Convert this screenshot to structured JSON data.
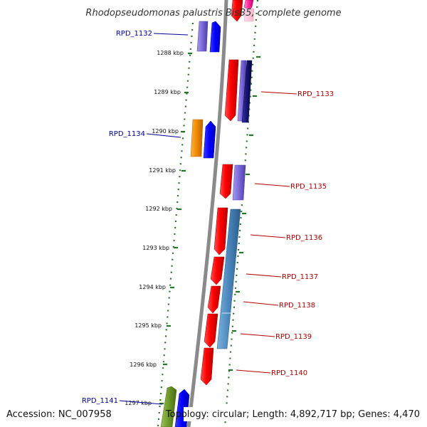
{
  "title": "Rhodopseudomonas palustris BisB5, complete genome",
  "footer": {
    "accession": "Accession: NC_007958",
    "topology": "Topology: circular; Length: 4,892,717 bp; Genes: 4,470"
  },
  "colors": {
    "forward_label": "#00009b",
    "reverse_label": "#b40000",
    "tick_green": "#227722",
    "backbone": "#8a8a8a"
  },
  "kbp_ticks": [
    "1288 kbp",
    "1289 kbp",
    "1290 kbp",
    "1291 kbp",
    "1292 kbp",
    "1293 kbp",
    "1294 kbp",
    "1295 kbp",
    "1296 kbp",
    "1297 kbp"
  ],
  "forward_labels": [
    "RPD_1132",
    "RPD_1134",
    "RPD_1141"
  ],
  "reverse_labels": [
    "RPD_1133",
    "RPD_1135",
    "RPD_1136",
    "RPD_1137",
    "RPD_1138",
    "RPD_1139",
    "RPD_1140"
  ]
}
